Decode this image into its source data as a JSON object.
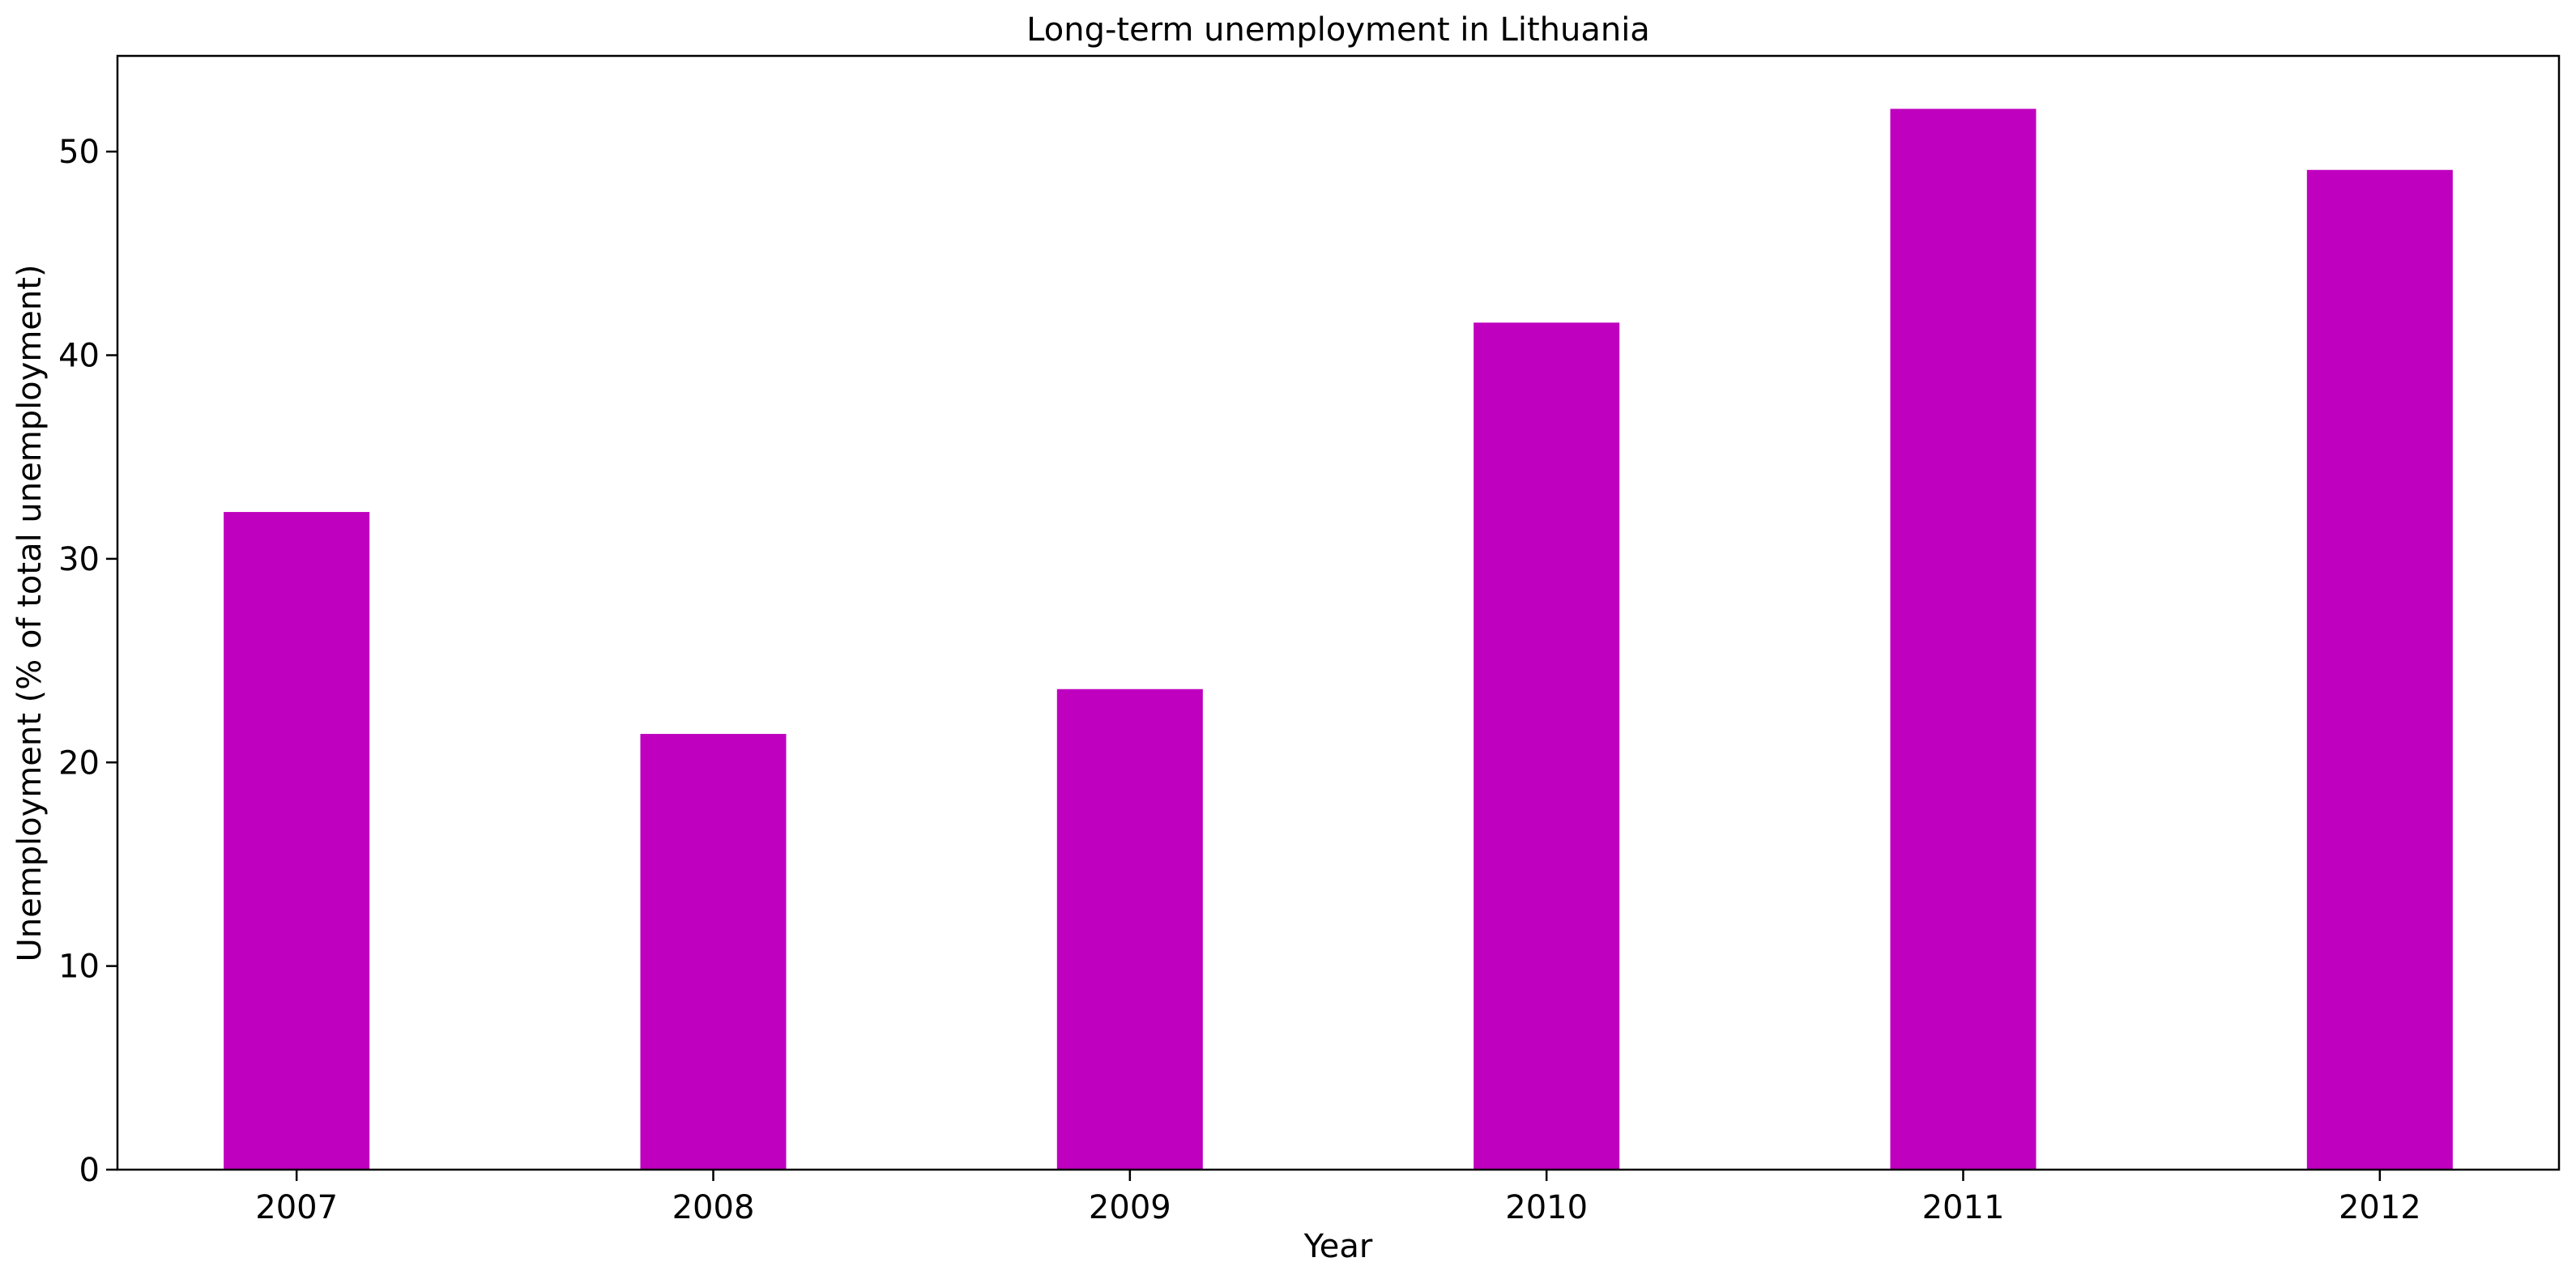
{
  "chart_data": {
    "type": "bar",
    "title": "Long-term unemployment in Lithuania",
    "xlabel": "Year",
    "ylabel": "Unemployment (% of total unemployment)",
    "categories": [
      "2007",
      "2008",
      "2009",
      "2010",
      "2011",
      "2012"
    ],
    "values": [
      32.3,
      21.4,
      23.6,
      41.6,
      52.1,
      49.1
    ],
    "ylim": [
      0,
      54.7
    ],
    "yticks": [
      0,
      10,
      20,
      30,
      40,
      50
    ],
    "bar_color": "#bf00bf",
    "grid": false,
    "legend": "none"
  }
}
